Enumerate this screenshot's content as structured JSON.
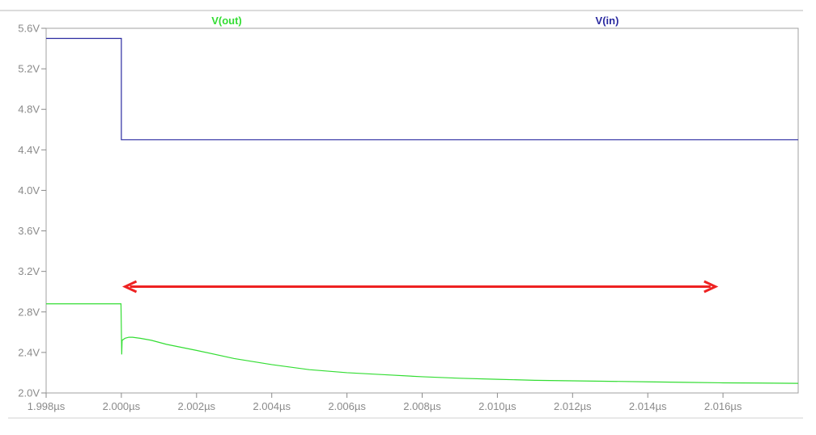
{
  "chart_data": {
    "type": "line",
    "legend_placement": "top",
    "grid": false,
    "xlim": [
      1.998,
      2.018
    ],
    "ylim": [
      2.0,
      5.6
    ],
    "x_unit": "µs",
    "y_unit": "V",
    "x_ticks": [
      "1.998µs",
      "2.000µs",
      "2.002µs",
      "2.004µs",
      "2.006µs",
      "2.008µs",
      "2.010µs",
      "2.012µs",
      "2.014µs",
      "2.016µs"
    ],
    "x_tick_values": [
      1.998,
      2.0,
      2.002,
      2.004,
      2.006,
      2.008,
      2.01,
      2.012,
      2.014,
      2.016
    ],
    "y_ticks": [
      "5.6V",
      "5.2V",
      "4.8V",
      "4.4V",
      "4.0V",
      "3.6V",
      "3.2V",
      "2.8V",
      "2.4V",
      "2.0V"
    ],
    "y_tick_values": [
      5.6,
      5.2,
      4.8,
      4.4,
      4.0,
      3.6,
      3.2,
      2.8,
      2.4,
      2.0
    ],
    "series": [
      {
        "name": "V(out)",
        "color": "#33dd33",
        "x": [
          1.998,
          1.99999,
          2.00001,
          2.00002,
          2.0001,
          2.0002,
          2.0003,
          2.0005,
          2.0008,
          2.0012,
          2.0016,
          2.002,
          2.003,
          2.004,
          2.005,
          2.006,
          2.007,
          2.008,
          2.009,
          2.01,
          2.011,
          2.012,
          2.013,
          2.014,
          2.015,
          2.016,
          2.017,
          2.018
        ],
        "values": [
          2.88,
          2.88,
          2.38,
          2.52,
          2.54,
          2.55,
          2.55,
          2.54,
          2.52,
          2.48,
          2.45,
          2.42,
          2.34,
          2.28,
          2.23,
          2.2,
          2.18,
          2.16,
          2.145,
          2.135,
          2.125,
          2.12,
          2.115,
          2.11,
          2.105,
          2.1,
          2.098,
          2.095
        ]
      },
      {
        "name": "V(in)",
        "color": "#2a2aa0",
        "x": [
          1.998,
          2.0,
          2.0,
          2.018
        ],
        "values": [
          5.5,
          5.5,
          4.5,
          4.5
        ]
      }
    ],
    "annotations": [
      {
        "type": "double-arrow",
        "color": "#ee2222",
        "x_start": 2.0001,
        "x_end": 2.0158,
        "y": 3.05
      }
    ]
  }
}
